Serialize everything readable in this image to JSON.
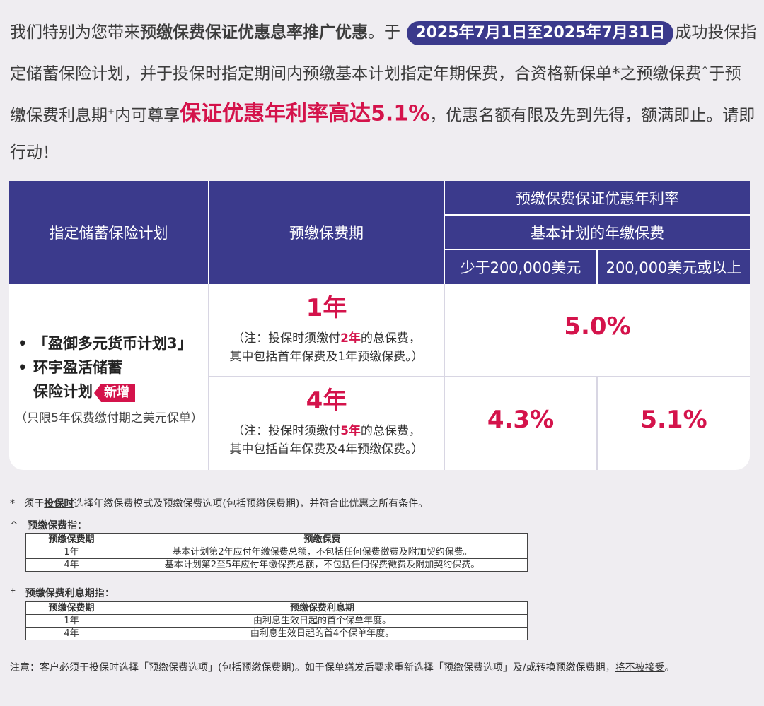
{
  "intro": {
    "p1": "我们特别为您带来",
    "p1_bold": "预缴保费保证优惠息率推广优惠",
    "p2": "。于",
    "date_range": "2025年7月1日至2025年7月31日",
    "p3": "成功投保指定储蓄保险计划，并于投保时指定期间内预缴基本计划指定年期保费，合资格新保单*之预缴保费",
    "caret": "^",
    "p4": "于预缴保费利息期",
    "plus": "+",
    "p5": "内可尊享",
    "highlight": "保证优惠年利率高达5.1%",
    "p6": "，优惠名额有限及先到先得，额满即止。请即行动！"
  },
  "table": {
    "col_plan": "指定储蓄保险计划",
    "col_period": "预缴保费期",
    "col_rate": "预缴保费保证优惠年利率",
    "col_base": "基本计划的年缴保费",
    "col_less": "少于200,000美元",
    "col_more": "200,000美元或以上",
    "plans": [
      "「盈御多元货币计划3」",
      "环宇盈活储蓄",
      "保险计划"
    ],
    "new_tag": "新增",
    "plan_note": "（只限5年保费缴付期之美元保单）",
    "row1": {
      "period": "1年",
      "note_a": "（注：投保时须缴付",
      "note_bold": "2年",
      "note_b": "的总保费，",
      "note_c": "其中包括首年保费及1年预缴保费。）",
      "rate": "5.0%"
    },
    "row2": {
      "period": "4年",
      "note_a": "（注：投保时须缴付",
      "note_bold": "5年",
      "note_b": "的总保费，",
      "note_c": "其中包括首年保费及4年预缴保费。）",
      "rate_less": "4.3%",
      "rate_more": "5.1%"
    }
  },
  "footnotes": {
    "star_mark": "*",
    "star_a": "须于",
    "star_u": "投保时",
    "star_b": "选择年缴保费模式及预缴保费选项(包括预缴保费期)，并符合此优惠之所有条件。",
    "caret_mark": "^",
    "caret_bold": "预缴保费",
    "caret_rest": "指：",
    "t1_h1": "预缴保费期",
    "t1_h2": "预缴保费",
    "t1_r1c1": "1年",
    "t1_r1c2": "基本计划第2年应付年缴保费总额，不包括任何保费徵费及附加契约保费。",
    "t1_r2c1": "4年",
    "t1_r2c2": "基本计划第2至5年应付年缴保费总额，不包括任何保费徵费及附加契约保费。",
    "plus_mark": "+",
    "plus_bold": "预缴保费利息期",
    "plus_rest": "指：",
    "t2_h1": "预缴保费期",
    "t2_h2": "预缴保费利息期",
    "t2_r1c1": "1年",
    "t2_r1c2": "由利息生效日起的首个保单年度。",
    "t2_r2c1": "4年",
    "t2_r2c2": "由利息生效日起的首4个保单年度。",
    "note_a": "注意：客户必须于投保时选择「预缴保费选项」(包括预缴保费期)。如于保单缮发后要求重新选择「预缴保费选项」及/或转换预缴保费期，",
    "note_u": "将不被接受",
    "note_b": "。"
  },
  "colors": {
    "navy": "#3b3a8c",
    "accent_red": "#d4134b",
    "background": "#efedf1"
  }
}
